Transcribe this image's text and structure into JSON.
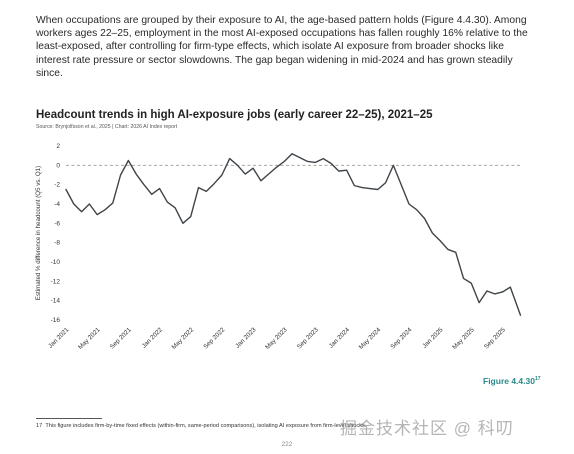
{
  "intro_text": "When occupations are grouped by their exposure to AI, the age-based pattern holds (Figure 4.4.30). Among workers ages 22–25, employment in the most AI-exposed occupations has fallen roughly 16% relative to the least-exposed, after controlling for firm-type effects, which isolate AI exposure from broader shocks like interest rate pressure or sector slowdowns. The gap began widening in mid-2024 and has grown steadily since.",
  "figure_label": "Figure 4.4.30",
  "figure_footnote_ref": "17",
  "footnote": {
    "number": "17",
    "text": "This figure includes firm-by-time fixed effects (within-firm, same-period comparisons), isolating AI exposure from firm-level shocks."
  },
  "watermark": "掘金技术社区 @ 科叨",
  "page_number": "222",
  "chart_data": {
    "type": "line",
    "title": "Headcount trends in high AI-exposure jobs (early career 22–25), 2021–25",
    "source": "Source: Brynjolfsson et al., 2025 | Chart: 2026 AI Index report",
    "xlabel": "",
    "ylabel": "Estimated % difference in headcount (Q5 vs. Q1)",
    "ylim": [
      -16,
      2
    ],
    "yticks": [
      2,
      0,
      -2,
      -4,
      -6,
      -8,
      -10,
      -12,
      -14,
      -16
    ],
    "xlim": [
      0,
      58.5
    ],
    "xticks": [
      {
        "label": "Jan 2021",
        "x": 0
      },
      {
        "label": "May 2021",
        "x": 4
      },
      {
        "label": "Sep 2021",
        "x": 8
      },
      {
        "label": "Jan 2022",
        "x": 12
      },
      {
        "label": "May 2022",
        "x": 16
      },
      {
        "label": "Sep 2022",
        "x": 20
      },
      {
        "label": "Jan 2023",
        "x": 24
      },
      {
        "label": "May 2023",
        "x": 28
      },
      {
        "label": "Sep 2023",
        "x": 32
      },
      {
        "label": "Jan 2024",
        "x": 36
      },
      {
        "label": "May 2024",
        "x": 40
      },
      {
        "label": "Sep 2024",
        "x": 44
      },
      {
        "label": "Jan 2025",
        "x": 48
      },
      {
        "label": "May 2025",
        "x": 52
      },
      {
        "label": "Sep 2025",
        "x": 56
      }
    ],
    "reference_line": 0,
    "grid": false,
    "line_color": "#3f4448",
    "reference_color": "#9a9a9a",
    "series": [
      {
        "x": [
          0,
          1,
          2,
          3,
          4,
          5,
          6,
          7,
          8,
          9,
          10,
          11,
          12,
          13,
          14,
          15,
          16,
          17,
          18,
          19,
          20,
          21,
          22,
          23,
          24,
          25,
          26,
          27,
          28,
          29,
          30,
          31,
          32,
          33,
          34,
          35,
          36,
          37,
          38,
          39,
          40,
          41,
          42,
          43,
          44,
          45,
          46,
          47,
          48,
          49,
          50,
          51,
          52,
          53,
          54,
          55,
          56,
          57,
          58.3
        ],
        "values": [
          -2.5,
          -4.0,
          -4.8,
          -4.0,
          -5.1,
          -4.6,
          -3.9,
          -1.0,
          0.5,
          -0.9,
          -2.0,
          -3.0,
          -2.4,
          -3.8,
          -4.4,
          -6.0,
          -5.3,
          -2.3,
          -2.7,
          -1.9,
          -1.0,
          0.7,
          0.0,
          -0.9,
          -0.3,
          -1.6,
          -0.9,
          -0.2,
          0.4,
          1.2,
          0.8,
          0.4,
          0.3,
          0.7,
          0.2,
          -0.6,
          -0.5,
          -2.1,
          -2.3,
          -2.4,
          -2.5,
          -1.8,
          0.0,
          -2.0,
          -4.0,
          -4.6,
          -5.5,
          -7.0,
          -7.8,
          -8.7,
          -9.0,
          -11.7,
          -12.2,
          -14.2,
          -13.0,
          -13.3,
          -13.1,
          -12.6,
          -15.5
        ]
      }
    ]
  }
}
